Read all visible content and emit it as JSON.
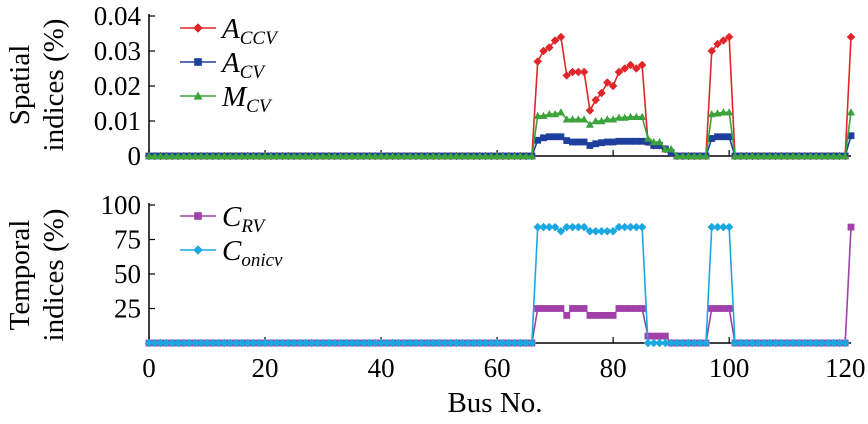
{
  "chart_data": [
    {
      "type": "line",
      "panel": "top",
      "ylabel_line1": "Spatial",
      "ylabel_line2": "indices (%)",
      "ylim": [
        0,
        0.04
      ],
      "yticks": [
        "0",
        "0.01",
        "0.02",
        "0.03",
        "0.04"
      ],
      "xlim": [
        0,
        121
      ],
      "legend": [
        {
          "base": "A",
          "sub": "CCV",
          "color": "#e0262a",
          "marker": "diamond"
        },
        {
          "base": "A",
          "sub": "CV",
          "color": "#1f3f9e",
          "marker": "square"
        },
        {
          "base": "M",
          "sub": "CV",
          "color": "#3aa33a",
          "marker": "triangle"
        }
      ],
      "series": [
        {
          "name": "A_CCV",
          "color": "#e0262a",
          "marker": "diamond",
          "points": [
            [
              66,
              0
            ],
            [
              67,
              0.027
            ],
            [
              68,
              0.03
            ],
            [
              69,
              0.031
            ],
            [
              70,
              0.033
            ],
            [
              71,
              0.034
            ],
            [
              72,
              0.023
            ],
            [
              73,
              0.024
            ],
            [
              74,
              0.024
            ],
            [
              75,
              0.024
            ],
            [
              76,
              0.013
            ],
            [
              77,
              0.016
            ],
            [
              78,
              0.018
            ],
            [
              79,
              0.021
            ],
            [
              80,
              0.02
            ],
            [
              81,
              0.024
            ],
            [
              82,
              0.025
            ],
            [
              83,
              0.026
            ],
            [
              84,
              0.025
            ],
            [
              85,
              0.026
            ],
            [
              86,
              0.004
            ],
            [
              87,
              0.003
            ],
            [
              88,
              0.003
            ],
            [
              89,
              0.002
            ],
            [
              90,
              0.001
            ],
            [
              91,
              0
            ],
            [
              96,
              0
            ],
            [
              97,
              0.03
            ],
            [
              98,
              0.032
            ],
            [
              99,
              0.033
            ],
            [
              100,
              0.034
            ],
            [
              101,
              0
            ],
            [
              120,
              0
            ],
            [
              121,
              0.034
            ]
          ]
        },
        {
          "name": "A_CV",
          "color": "#1f3f9e",
          "marker": "square",
          "points": [
            [
              66,
              0
            ],
            [
              67,
              0.0045
            ],
            [
              68,
              0.0052
            ],
            [
              69,
              0.0055
            ],
            [
              70,
              0.0055
            ],
            [
              71,
              0.0055
            ],
            [
              72,
              0.0044
            ],
            [
              73,
              0.004
            ],
            [
              74,
              0.004
            ],
            [
              75,
              0.004
            ],
            [
              76,
              0.003
            ],
            [
              77,
              0.0035
            ],
            [
              78,
              0.0038
            ],
            [
              79,
              0.004
            ],
            [
              80,
              0.004
            ],
            [
              81,
              0.0042
            ],
            [
              82,
              0.0042
            ],
            [
              83,
              0.0042
            ],
            [
              84,
              0.0042
            ],
            [
              85,
              0.0042
            ],
            [
              86,
              0.004
            ],
            [
              87,
              0.003
            ],
            [
              88,
              0.003
            ],
            [
              89,
              0.002
            ],
            [
              90,
              0.001
            ],
            [
              91,
              0
            ],
            [
              96,
              0
            ],
            [
              97,
              0.005
            ],
            [
              98,
              0.0055
            ],
            [
              99,
              0.0055
            ],
            [
              100,
              0.0055
            ],
            [
              101,
              0
            ],
            [
              120,
              0
            ],
            [
              121,
              0.0058
            ]
          ]
        },
        {
          "name": "M_CV",
          "color": "#3aa33a",
          "marker": "triangle",
          "points": [
            [
              66,
              0
            ],
            [
              67,
              0.0115
            ],
            [
              68,
              0.0115
            ],
            [
              69,
              0.012
            ],
            [
              70,
              0.012
            ],
            [
              71,
              0.0125
            ],
            [
              72,
              0.0105
            ],
            [
              73,
              0.0105
            ],
            [
              74,
              0.0105
            ],
            [
              75,
              0.0105
            ],
            [
              76,
              0.009
            ],
            [
              77,
              0.01
            ],
            [
              78,
              0.01
            ],
            [
              79,
              0.0105
            ],
            [
              80,
              0.0105
            ],
            [
              81,
              0.011
            ],
            [
              82,
              0.011
            ],
            [
              83,
              0.0112
            ],
            [
              84,
              0.0112
            ],
            [
              85,
              0.0112
            ],
            [
              86,
              0.005
            ],
            [
              87,
              0.004
            ],
            [
              88,
              0.004
            ],
            [
              89,
              0.002
            ],
            [
              90,
              0.002
            ],
            [
              91,
              0
            ],
            [
              96,
              0
            ],
            [
              97,
              0.012
            ],
            [
              98,
              0.0122
            ],
            [
              99,
              0.0125
            ],
            [
              100,
              0.0125
            ],
            [
              101,
              0
            ],
            [
              120,
              0
            ],
            [
              121,
              0.0125
            ]
          ]
        }
      ]
    },
    {
      "type": "line",
      "panel": "bottom",
      "ylabel_line1": "Temporal",
      "ylabel_line2": "indices (%)",
      "ylim": [
        0,
        100
      ],
      "yticks": [
        "25",
        "50",
        "75",
        "100"
      ],
      "xlim": [
        0,
        121
      ],
      "xticks": [
        "0",
        "20",
        "40",
        "60",
        "80",
        "100",
        "120"
      ],
      "xlabel": "Bus No.",
      "legend": [
        {
          "base": "C",
          "sub": "RV",
          "color": "#a040a8",
          "marker": "square"
        },
        {
          "base": "C",
          "sub": "onicv",
          "color": "#1aa8e0",
          "marker": "diamond"
        }
      ],
      "series": [
        {
          "name": "C_RV",
          "color": "#a040a8",
          "marker": "square",
          "points": [
            [
              66,
              0
            ],
            [
              67,
              25
            ],
            [
              68,
              25
            ],
            [
              69,
              25
            ],
            [
              70,
              25
            ],
            [
              71,
              25
            ],
            [
              72,
              20
            ],
            [
              73,
              25
            ],
            [
              74,
              25
            ],
            [
              75,
              25
            ],
            [
              76,
              20
            ],
            [
              77,
              20
            ],
            [
              78,
              20
            ],
            [
              79,
              20
            ],
            [
              80,
              20
            ],
            [
              81,
              25
            ],
            [
              82,
              25
            ],
            [
              83,
              25
            ],
            [
              84,
              25
            ],
            [
              85,
              25
            ],
            [
              86,
              5
            ],
            [
              87,
              5
            ],
            [
              88,
              5
            ],
            [
              89,
              5
            ],
            [
              90,
              0
            ],
            [
              96,
              0
            ],
            [
              97,
              25
            ],
            [
              98,
              25
            ],
            [
              99,
              25
            ],
            [
              100,
              25
            ],
            [
              101,
              0
            ],
            [
              120,
              0
            ],
            [
              121,
              84
            ]
          ]
        },
        {
          "name": "C_onicv",
          "color": "#1aa8e0",
          "marker": "diamond",
          "points": [
            [
              66,
              0
            ],
            [
              67,
              84
            ],
            [
              68,
              84
            ],
            [
              69,
              84
            ],
            [
              70,
              84
            ],
            [
              71,
              81
            ],
            [
              72,
              84
            ],
            [
              73,
              84
            ],
            [
              74,
              84
            ],
            [
              75,
              84
            ],
            [
              76,
              81
            ],
            [
              77,
              81
            ],
            [
              78,
              81
            ],
            [
              79,
              81
            ],
            [
              80,
              81
            ],
            [
              81,
              84
            ],
            [
              82,
              84
            ],
            [
              83,
              84
            ],
            [
              84,
              84
            ],
            [
              85,
              84
            ],
            [
              86,
              0
            ],
            [
              96,
              0
            ],
            [
              97,
              84
            ],
            [
              98,
              84
            ],
            [
              99,
              84
            ],
            [
              100,
              84
            ],
            [
              101,
              0
            ],
            [
              120,
              0
            ]
          ]
        }
      ]
    }
  ]
}
